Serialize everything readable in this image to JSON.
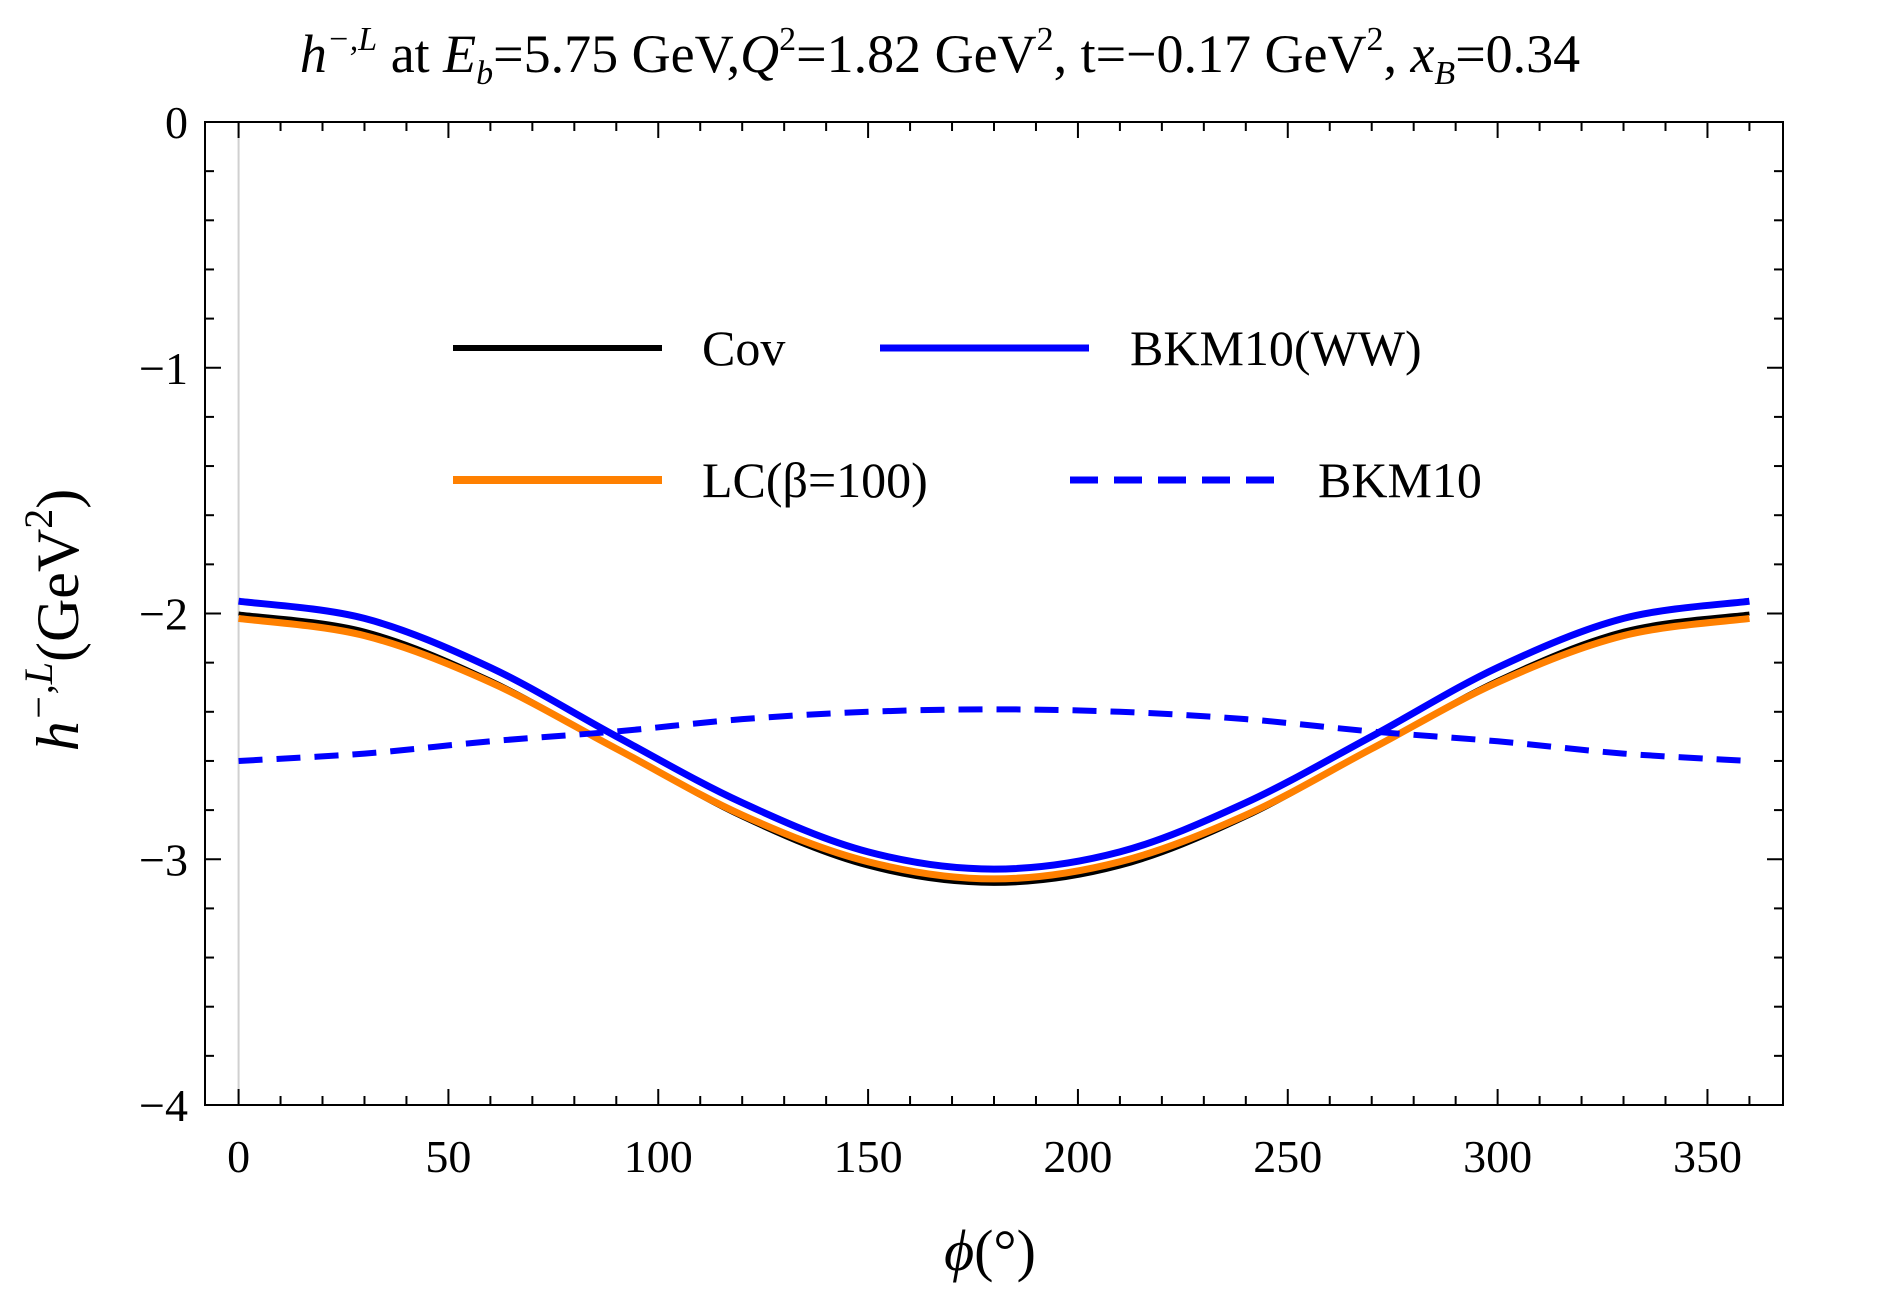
{
  "title": {
    "h_symbol": "h",
    "h_sup": "−,L",
    "at": " at ",
    "eb_symbol": "E",
    "eb_sub": "b",
    "eb_val": "=5.75 GeV,",
    "q_symbol": "Q",
    "q_sup": "2",
    "q_val": "=1.82 GeV",
    "q_unit_sup": "2",
    "t_part": ", t=−0.17 GeV",
    "t_unit_sup": "2",
    "comma": ", ",
    "x_symbol": "x",
    "x_sub": "B",
    "x_val": "=0.34"
  },
  "ylabel": {
    "symbol": "h",
    "sup": "−,L",
    "unit": "(GeV",
    "unit_sup": "2",
    "close": ")"
  },
  "xlabel": {
    "symbol": "ϕ",
    "unit": "(°)"
  },
  "legend": {
    "cov": "Cov",
    "bkm_ww": "BKM10(WW)",
    "lc": "LC(β=100)",
    "bkm": "BKM10"
  },
  "colors": {
    "cov": "#000000",
    "lc": "#ff8000",
    "bkm_ww": "#0000ff",
    "bkm": "#0000ff"
  },
  "chart_data": {
    "type": "line",
    "title": "h^{−,L} at E_b=5.75 GeV, Q^2=1.82 GeV^2, t=−0.17 GeV^2, x_B=0.34",
    "xlabel": "ϕ(°)",
    "ylabel": "h^{−,L} (GeV^2)",
    "xlim": [
      -8,
      368
    ],
    "ylim": [
      -4,
      0
    ],
    "xticks": [
      0,
      50,
      100,
      150,
      200,
      250,
      300,
      350
    ],
    "yticks": [
      0,
      -1,
      -2,
      -3,
      -4
    ],
    "xtick_labels": [
      "0",
      "50",
      "100",
      "150",
      "200",
      "250",
      "300",
      "350"
    ],
    "ytick_labels": [
      "0",
      "−1",
      "−2",
      "−3",
      "−4"
    ],
    "x": [
      0,
      30,
      60,
      90,
      120,
      150,
      180,
      210,
      240,
      270,
      300,
      330,
      360
    ],
    "series": [
      {
        "name": "Cov",
        "style": "solid",
        "values": [
          -2.0,
          -2.07,
          -2.27,
          -2.55,
          -2.83,
          -3.03,
          -3.1,
          -3.03,
          -2.83,
          -2.55,
          -2.27,
          -2.07,
          -2.0
        ]
      },
      {
        "name": "LC(β=100)",
        "style": "solid",
        "values": [
          -2.02,
          -2.09,
          -2.28,
          -2.55,
          -2.82,
          -3.01,
          -3.08,
          -3.01,
          -2.82,
          -2.55,
          -2.28,
          -2.09,
          -2.02
        ]
      },
      {
        "name": "BKM10(WW)",
        "style": "solid",
        "values": [
          -1.95,
          -2.02,
          -2.22,
          -2.5,
          -2.77,
          -2.97,
          -3.04,
          -2.97,
          -2.77,
          -2.5,
          -2.22,
          -2.02,
          -1.95
        ]
      },
      {
        "name": "BKM10",
        "style": "dashed",
        "values": [
          -2.6,
          -2.57,
          -2.52,
          -2.48,
          -2.43,
          -2.4,
          -2.39,
          -2.4,
          -2.43,
          -2.48,
          -2.52,
          -2.57,
          -2.6
        ]
      }
    ],
    "legend_position": "top-center"
  }
}
